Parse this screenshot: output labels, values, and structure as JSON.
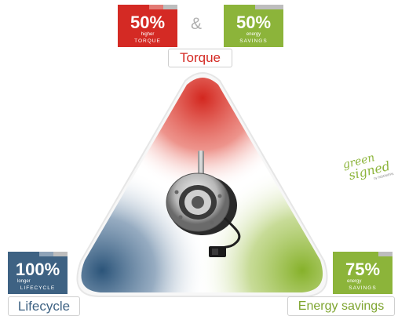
{
  "colors": {
    "torque_red": "#d42a24",
    "energy_green": "#8cb43a",
    "lifecycle_blue": "#3e6283",
    "badge_grey": "#bdbdbd"
  },
  "connector": "&",
  "badges": {
    "torque": {
      "value": "50%",
      "qualifier": "higher",
      "category": "TORQUE"
    },
    "energy_top": {
      "value": "50%",
      "qualifier": "energy",
      "category": "SAVINGS"
    },
    "lifecycle": {
      "value": "100%",
      "qualifier": "longer",
      "category": "LIFECYCLE"
    },
    "energy_bottom": {
      "value": "75%",
      "qualifier": "energy",
      "category": "SAVINGS"
    }
  },
  "vertex_labels": {
    "top": "Torque",
    "bottom_left": "Lifecycle",
    "bottom_right": "Energy savings"
  },
  "logo": {
    "line1": "green",
    "line2": "signed",
    "byline": "by INDEMEPA"
  }
}
